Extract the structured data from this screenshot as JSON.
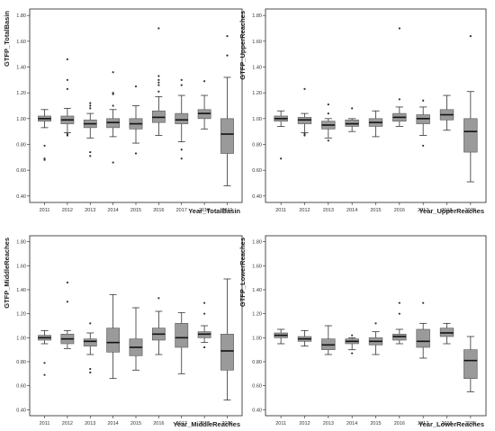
{
  "chart_data": [
    {
      "type": "box",
      "ylabel": "GTFP_TotalBasin",
      "xlabel": "Year_TotalBasin",
      "ylim": [
        0.35,
        1.85
      ],
      "yticks": [
        "0.40",
        "0.60",
        "0.80",
        "1.00",
        "1.20",
        "1.40",
        "1.60",
        "1.80"
      ],
      "categories": [
        "2011",
        "2012",
        "2013",
        "2014",
        "2015",
        "2016",
        "2017",
        "2018",
        "2019"
      ],
      "boxes": [
        {
          "low": 0.93,
          "q1": 0.98,
          "median": 1.0,
          "q3": 1.02,
          "high": 1.07,
          "outliers": [
            0.79,
            0.69,
            0.68
          ]
        },
        {
          "low": 0.89,
          "q1": 0.96,
          "median": 0.99,
          "q3": 1.02,
          "high": 1.08,
          "outliers": [
            1.46,
            1.3,
            1.23,
            0.88,
            0.87
          ]
        },
        {
          "low": 0.85,
          "q1": 0.93,
          "median": 0.96,
          "q3": 0.99,
          "high": 1.04,
          "outliers": [
            1.12,
            1.1,
            1.08,
            0.74,
            0.71
          ]
        },
        {
          "low": 0.86,
          "q1": 0.93,
          "median": 0.97,
          "q3": 1.0,
          "high": 1.07,
          "outliers": [
            1.36,
            1.2,
            1.19,
            1.1,
            0.66
          ]
        },
        {
          "low": 0.81,
          "q1": 0.92,
          "median": 0.96,
          "q3": 1.0,
          "high": 1.1,
          "outliers": [
            1.25,
            0.73
          ]
        },
        {
          "low": 0.87,
          "q1": 0.97,
          "median": 1.01,
          "q3": 1.06,
          "high": 1.17,
          "outliers": [
            1.7,
            1.33,
            1.3,
            1.28,
            1.26,
            1.21
          ]
        },
        {
          "low": 0.82,
          "q1": 0.96,
          "median": 0.99,
          "q3": 1.04,
          "high": 1.18,
          "outliers": [
            1.3,
            1.26,
            0.76,
            0.69
          ]
        },
        {
          "low": 0.92,
          "q1": 1.0,
          "median": 1.04,
          "q3": 1.07,
          "high": 1.18,
          "outliers": [
            1.29
          ]
        },
        {
          "low": 0.48,
          "q1": 0.73,
          "median": 0.88,
          "q3": 1.0,
          "high": 1.32,
          "outliers": [
            1.64,
            1.49
          ]
        }
      ]
    },
    {
      "type": "box",
      "ylabel": "GTFP_UpperReaches",
      "xlabel": "Year_UpperReaches",
      "ylim": [
        0.35,
        1.85
      ],
      "yticks": [
        "0.40",
        "0.60",
        "0.80",
        "1.00",
        "1.20",
        "1.40",
        "1.60",
        "1.80"
      ],
      "categories": [
        "2011",
        "2012",
        "2013",
        "2014",
        "2015",
        "2016",
        "2017",
        "2018",
        "2019"
      ],
      "boxes": [
        {
          "low": 0.94,
          "q1": 0.98,
          "median": 1.0,
          "q3": 1.02,
          "high": 1.06,
          "outliers": [
            0.69
          ]
        },
        {
          "low": 0.89,
          "q1": 0.96,
          "median": 0.99,
          "q3": 1.01,
          "high": 1.04,
          "outliers": [
            1.23,
            0.88,
            0.87
          ]
        },
        {
          "low": 0.85,
          "q1": 0.92,
          "median": 0.95,
          "q3": 0.98,
          "high": 1.0,
          "outliers": [
            1.11,
            1.04,
            0.83
          ]
        },
        {
          "low": 0.9,
          "q1": 0.94,
          "median": 0.96,
          "q3": 0.99,
          "high": 1.0,
          "outliers": [
            1.08
          ]
        },
        {
          "low": 0.86,
          "q1": 0.94,
          "median": 0.97,
          "q3": 1.0,
          "high": 1.06,
          "outliers": []
        },
        {
          "low": 0.94,
          "q1": 0.98,
          "median": 1.01,
          "q3": 1.04,
          "high": 1.09,
          "outliers": [
            1.7,
            1.15
          ]
        },
        {
          "low": 0.87,
          "q1": 0.96,
          "median": 1.0,
          "q3": 1.03,
          "high": 1.09,
          "outliers": [
            1.14,
            0.79
          ]
        },
        {
          "low": 0.91,
          "q1": 0.99,
          "median": 1.03,
          "q3": 1.07,
          "high": 1.18,
          "outliers": []
        },
        {
          "low": 0.51,
          "q1": 0.74,
          "median": 0.9,
          "q3": 1.0,
          "high": 1.21,
          "outliers": [
            1.64
          ]
        }
      ]
    },
    {
      "type": "box",
      "ylabel": "GTFP_MiddleReaches",
      "xlabel": "Year_MiddleReaches",
      "ylim": [
        0.35,
        1.85
      ],
      "yticks": [
        "0.40",
        "0.60",
        "0.80",
        "1.00",
        "1.20",
        "1.40",
        "1.60",
        "1.80"
      ],
      "categories": [
        "2011",
        "2012",
        "2013",
        "2014",
        "2015",
        "2016",
        "2017",
        "2018",
        "2019"
      ],
      "boxes": [
        {
          "low": 0.95,
          "q1": 0.98,
          "median": 1.0,
          "q3": 1.02,
          "high": 1.06,
          "outliers": [
            0.79,
            0.69
          ]
        },
        {
          "low": 0.91,
          "q1": 0.95,
          "median": 0.99,
          "q3": 1.03,
          "high": 1.06,
          "outliers": [
            1.46,
            1.3
          ]
        },
        {
          "low": 0.86,
          "q1": 0.93,
          "median": 0.97,
          "q3": 0.99,
          "high": 1.04,
          "outliers": [
            1.12,
            0.74,
            0.71
          ]
        },
        {
          "low": 0.66,
          "q1": 0.88,
          "median": 0.96,
          "q3": 1.08,
          "high": 1.36,
          "outliers": []
        },
        {
          "low": 0.73,
          "q1": 0.85,
          "median": 0.92,
          "q3": 0.99,
          "high": 1.25,
          "outliers": []
        },
        {
          "low": 0.86,
          "q1": 0.98,
          "median": 1.03,
          "q3": 1.08,
          "high": 1.22,
          "outliers": [
            1.33
          ]
        },
        {
          "low": 0.7,
          "q1": 0.92,
          "median": 1.0,
          "q3": 1.12,
          "high": 1.21,
          "outliers": []
        },
        {
          "low": 0.96,
          "q1": 1.0,
          "median": 1.03,
          "q3": 1.05,
          "high": 1.1,
          "outliers": [
            1.29,
            1.2,
            0.92
          ]
        },
        {
          "low": 0.48,
          "q1": 0.73,
          "median": 0.89,
          "q3": 1.03,
          "high": 1.49,
          "outliers": []
        }
      ]
    },
    {
      "type": "box",
      "ylabel": "GTFP_LowerReaches",
      "xlabel": "Year_LowerReaches",
      "ylim": [
        0.35,
        1.85
      ],
      "yticks": [
        "0.40",
        "0.60",
        "0.80",
        "1.00",
        "1.20",
        "1.40",
        "1.60",
        "1.80"
      ],
      "categories": [
        "2011",
        "2012",
        "2013",
        "2014",
        "2015",
        "2016",
        "2017",
        "2018",
        "2019"
      ],
      "boxes": [
        {
          "low": 0.95,
          "q1": 1.0,
          "median": 1.02,
          "q3": 1.04,
          "high": 1.07,
          "outliers": []
        },
        {
          "low": 0.93,
          "q1": 0.97,
          "median": 0.99,
          "q3": 1.01,
          "high": 1.06,
          "outliers": []
        },
        {
          "low": 0.86,
          "q1": 0.9,
          "median": 0.94,
          "q3": 0.99,
          "high": 1.1,
          "outliers": []
        },
        {
          "low": 0.9,
          "q1": 0.95,
          "median": 0.97,
          "q3": 0.99,
          "high": 1.0,
          "outliers": [
            1.02,
            0.87
          ]
        },
        {
          "low": 0.86,
          "q1": 0.94,
          "median": 0.97,
          "q3": 1.0,
          "high": 1.05,
          "outliers": [
            1.12
          ]
        },
        {
          "low": 0.95,
          "q1": 0.98,
          "median": 1.01,
          "q3": 1.03,
          "high": 1.07,
          "outliers": [
            1.29,
            1.2
          ]
        },
        {
          "low": 0.83,
          "q1": 0.92,
          "median": 0.97,
          "q3": 1.07,
          "high": 1.12,
          "outliers": [
            1.29
          ]
        },
        {
          "low": 0.95,
          "q1": 1.01,
          "median": 1.04,
          "q3": 1.08,
          "high": 1.12,
          "outliers": []
        },
        {
          "low": 0.55,
          "q1": 0.66,
          "median": 0.81,
          "q3": 0.9,
          "high": 1.01,
          "outliers": []
        }
      ]
    }
  ]
}
